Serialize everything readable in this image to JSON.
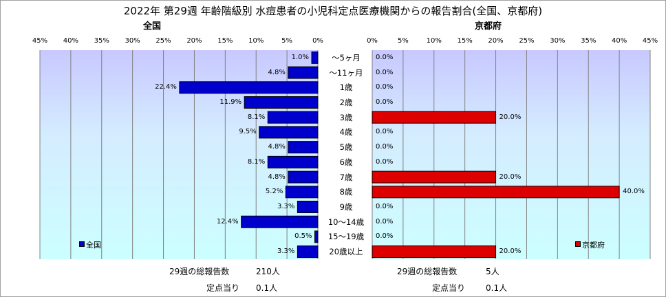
{
  "chart_data": {
    "type": "bar",
    "title": "2022年 第29週 年齢階級別 水痘患者の小児科定点医療機関からの報告割合(全国、京都府)",
    "categories": [
      "～5ヶ月",
      "～11ヶ月",
      "1歳",
      "2歳",
      "3歳",
      "4歳",
      "5歳",
      "6歳",
      "7歳",
      "8歳",
      "9歳",
      "10～14歳",
      "15～19歳",
      "20歳以上"
    ],
    "x_ticks": [
      "45%",
      "40%",
      "35%",
      "30%",
      "25%",
      "20%",
      "15%",
      "10%",
      "5%",
      "0%"
    ],
    "xlim": [
      0,
      45
    ],
    "grid": true,
    "series": [
      {
        "name": "全国",
        "subtitle": "全国",
        "color": "#0000cc",
        "values": [
          1.0,
          4.8,
          22.4,
          11.9,
          8.1,
          9.5,
          4.8,
          8.1,
          4.8,
          5.2,
          3.3,
          12.4,
          0.5,
          3.3
        ],
        "labels": [
          "1.0%",
          "4.8%",
          "22.4%",
          "11.9%",
          "8.1%",
          "9.5%",
          "4.8%",
          "8.1%",
          "4.8%",
          "5.2%",
          "3.3%",
          "12.4%",
          "0.5%",
          "3.3%"
        ],
        "legend_label": "全国"
      },
      {
        "name": "京都府",
        "subtitle": "京都府",
        "color": "#dd0000",
        "values": [
          0,
          0,
          0,
          0,
          20,
          0,
          0,
          0,
          20,
          40,
          0,
          0,
          0,
          20
        ],
        "labels": [
          "0.0%",
          "0.0%",
          "0.0%",
          "0.0%",
          "20.0%",
          "0.0%",
          "0.0%",
          "0.0%",
          "20.0%",
          "40.0%",
          "0.0%",
          "0.0%",
          "0.0%",
          "20.0%"
        ],
        "legend_label": "京都府"
      }
    ]
  },
  "footer": {
    "left_total_label": "29週の総報告数",
    "left_total_value": "210人",
    "left_per_label": "定点当り",
    "left_per_value": "0.1人",
    "right_total_label": "29週の総報告数",
    "right_total_value": "5人",
    "right_per_label": "定点当り",
    "right_per_value": "0.1人"
  }
}
